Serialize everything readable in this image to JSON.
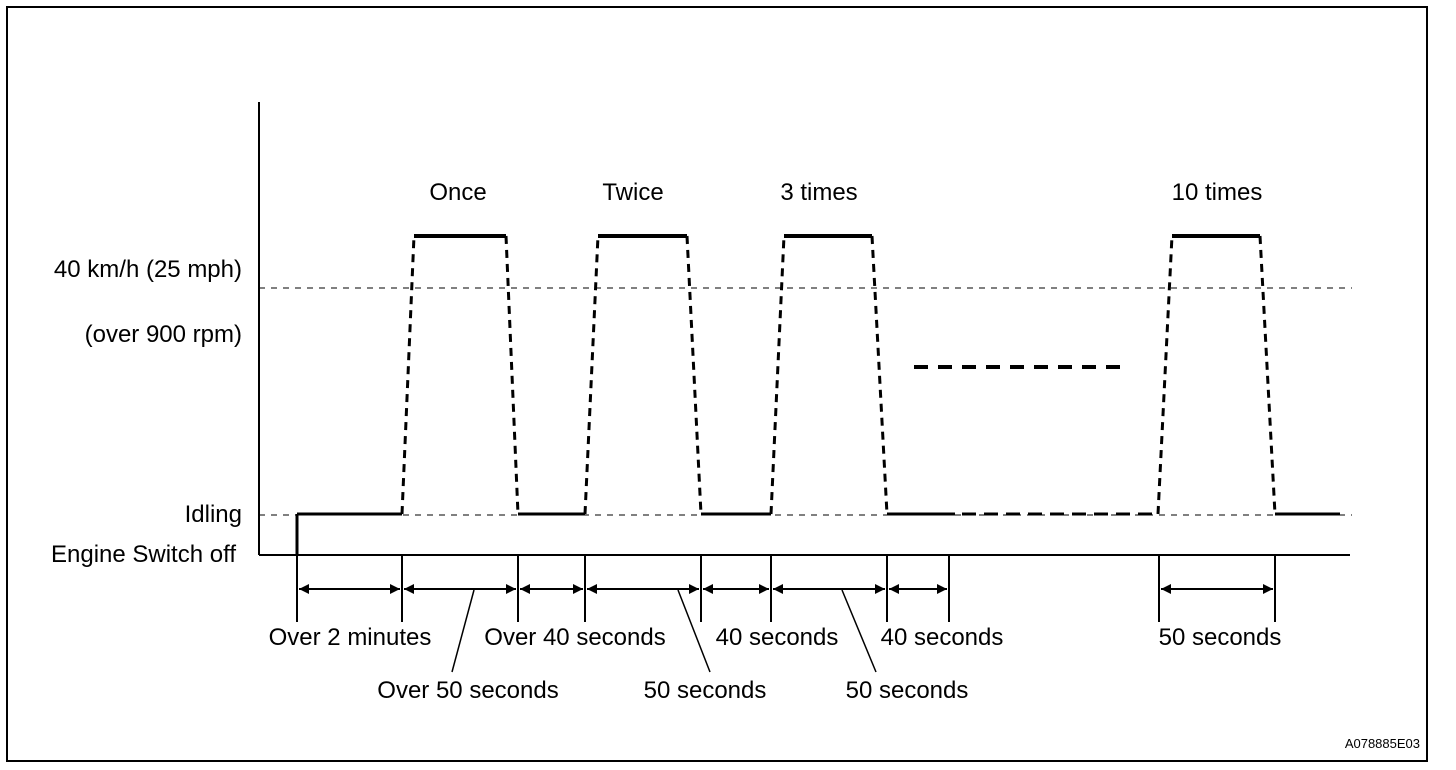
{
  "diagram": {
    "y_levels": {
      "speed": "40 km/h (25 mph)",
      "rpm": "(over 900 rpm)",
      "idling": "Idling",
      "off": "Engine Switch off"
    },
    "cycles": [
      "Once",
      "Twice",
      "3 times",
      "10 times"
    ],
    "intervals_top": [
      "Over 2 minutes",
      "Over 40 seconds",
      "40 seconds",
      "40 seconds",
      "50 seconds"
    ],
    "intervals_bottom": [
      "Over 50 seconds",
      "50 seconds",
      "50 seconds"
    ],
    "figure_id": "A078885E03"
  }
}
